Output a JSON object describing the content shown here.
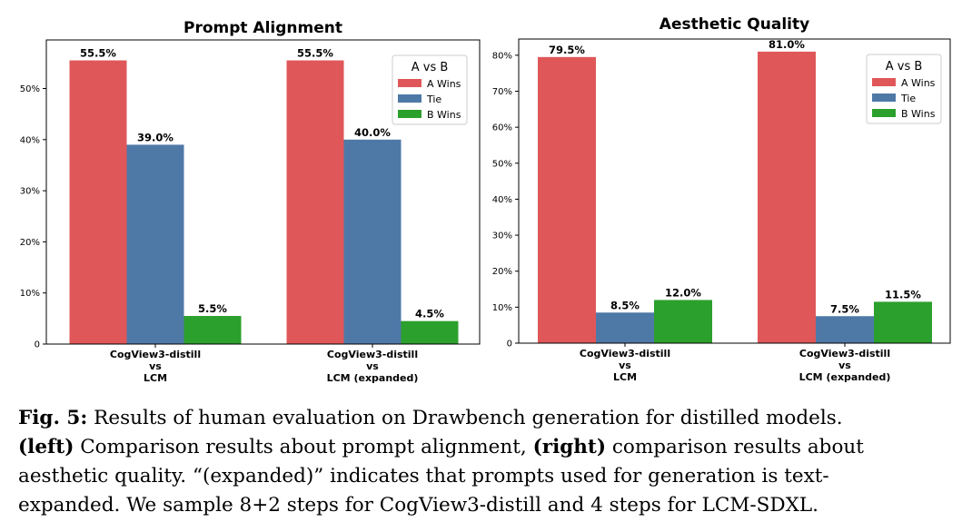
{
  "chart_data": [
    {
      "type": "bar",
      "title": "Prompt Alignment",
      "xlabel": "",
      "ylabel": "",
      "categories": [
        [
          "CogView3-distill",
          "vs",
          "LCM"
        ],
        [
          "CogView3-distill",
          "vs",
          "LCM (expanded)"
        ]
      ],
      "series": [
        {
          "name": "A Wins",
          "color": "#e05759",
          "values": [
            55.5,
            55.5
          ],
          "labels": [
            "55.5%",
            "55.5%"
          ]
        },
        {
          "name": "Tie",
          "color": "#4e79a7",
          "values": [
            39.0,
            40.0
          ],
          "labels": [
            "39.0%",
            "40.0%"
          ]
        },
        {
          "name": "B Wins",
          "color": "#2ca02c",
          "values": [
            5.5,
            4.5
          ],
          "labels": [
            "5.5%",
            "4.5%"
          ]
        }
      ],
      "ylim": [
        0,
        59.5
      ],
      "yticks": [
        0,
        10,
        20,
        30,
        40,
        50
      ],
      "ytick_labels": [
        "0",
        "10%",
        "20%",
        "30%",
        "40%",
        "50%"
      ],
      "legend_title": "A vs B",
      "legend_position": "top-right",
      "grid": false
    },
    {
      "type": "bar",
      "title": "Aesthetic Quality",
      "xlabel": "",
      "ylabel": "",
      "categories": [
        [
          "CogView3-distill",
          "vs",
          "LCM"
        ],
        [
          "CogView3-distill",
          "vs",
          "LCM (expanded)"
        ]
      ],
      "series": [
        {
          "name": "A Wins",
          "color": "#e05759",
          "values": [
            79.5,
            81.0
          ],
          "labels": [
            "79.5%",
            "81.0%"
          ]
        },
        {
          "name": "Tie",
          "color": "#4e79a7",
          "values": [
            8.5,
            7.5
          ],
          "labels": [
            "8.5%",
            "7.5%"
          ]
        },
        {
          "name": "B Wins",
          "color": "#2ca02c",
          "values": [
            12.0,
            11.5
          ],
          "labels": [
            "12.0%",
            "11.5%"
          ]
        }
      ],
      "ylim": [
        0,
        84.5
      ],
      "yticks": [
        0,
        10,
        20,
        30,
        40,
        50,
        60,
        70,
        80
      ],
      "ytick_labels": [
        "0",
        "10%",
        "20%",
        "30%",
        "40%",
        "50%",
        "60%",
        "70%",
        "80%"
      ],
      "legend_title": "A vs B",
      "legend_position": "top-right",
      "grid": false
    }
  ],
  "caption": {
    "label": "Fig. 5:",
    "line1_rest": " Results of human evaluation on Drawbench generation for distilled models.",
    "left_tag": "(left)",
    "line2_mid": " Comparison results about prompt alignment, ",
    "right_tag": "(right)",
    "line2_end": " comparison results about",
    "line3": "aesthetic quality. “(expanded)” indicates that prompts used for generation is text-",
    "line4": "expanded. We sample 8+2 steps for CogView3-distill and 4 steps for LCM-SDXL."
  }
}
